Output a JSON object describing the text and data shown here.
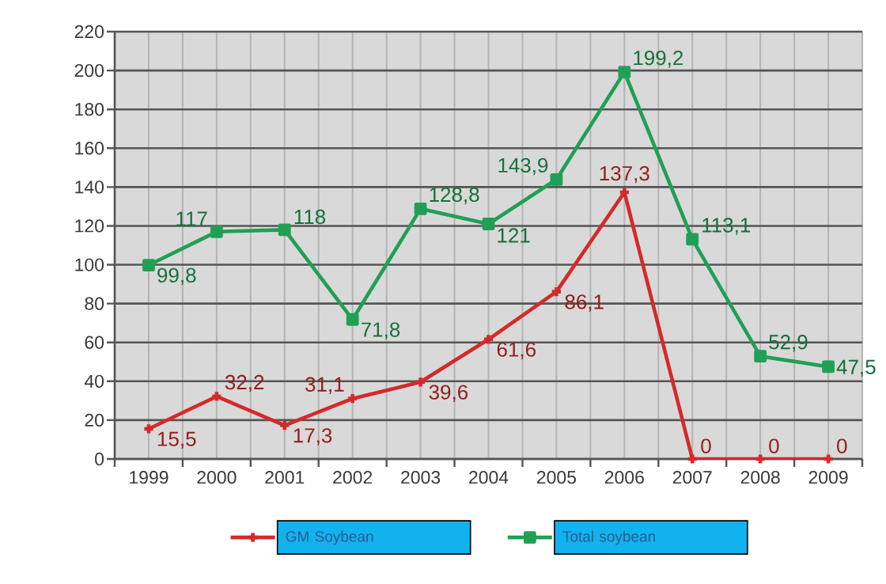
{
  "chart_data": {
    "type": "line",
    "categories": [
      "1999",
      "2000",
      "2001",
      "2002",
      "2003",
      "2004",
      "2005",
      "2006",
      "2007",
      "2008",
      "2009"
    ],
    "ylim": [
      0,
      220
    ],
    "yticks": [
      0,
      20,
      40,
      60,
      80,
      100,
      120,
      140,
      160,
      180,
      200,
      220
    ],
    "grid": true,
    "legend": "bottom",
    "line_style": "solid",
    "series": [
      {
        "name": "GM Soybean",
        "color": "#d42a2a",
        "marker": "cross",
        "values": [
          15.5,
          32.2,
          17.3,
          31.1,
          39.6,
          61.6,
          86.1,
          137.3,
          0,
          0,
          0
        ],
        "value_labels": [
          "15,5",
          "32,2",
          "17,3",
          "31,1",
          "39,6",
          "61,6",
          "86,1",
          "137,3",
          "0",
          "0",
          "0"
        ]
      },
      {
        "name": "Total soybean",
        "color": "#1fa055",
        "marker": "square",
        "values": [
          99.8,
          117,
          118,
          71.8,
          128.8,
          121,
          143.9,
          199.2,
          113.1,
          52.9,
          47.5
        ],
        "value_labels": [
          "99,8",
          "117",
          "118",
          "71,8",
          "128,8",
          "121",
          "143,9",
          "199,2",
          "113,1",
          "52,9",
          "47,5"
        ]
      }
    ]
  }
}
